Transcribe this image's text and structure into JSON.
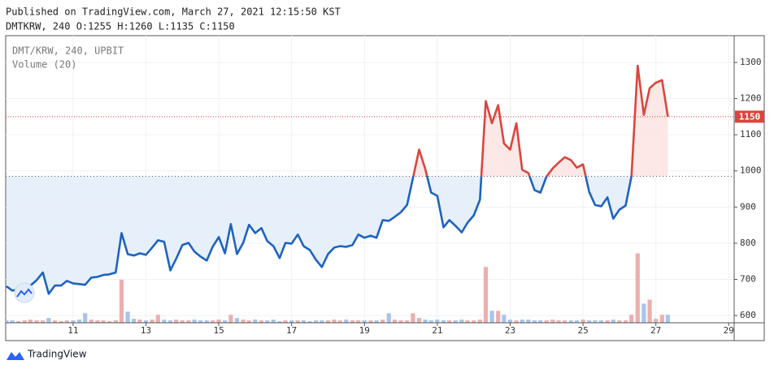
{
  "header": {
    "published": "Published on TradingView.com, March 27, 2021 12:15:50 KST",
    "ohlc": "DMTKRW, 240 O:1255 H:1260 L:1135 C:1150"
  },
  "footer": {
    "brand": "TradingView"
  },
  "chart_data": {
    "type": "baseline",
    "baseline": 985,
    "color_above": "#d9463e",
    "color_below": "#1e63c0",
    "fill_above": "#fbe5e4",
    "fill_below": "#e4eefa",
    "volume_up_color": "#eab0ae",
    "volume_down_color": "#a9c4ea",
    "xlim": [
      9.15,
      29.15
    ],
    "xticks": [
      11,
      13,
      15,
      17,
      19,
      21,
      23,
      25,
      27,
      29
    ],
    "ylim": [
      580,
      1374
    ],
    "yticks": [
      600,
      700,
      800,
      900,
      1000,
      1100,
      1200,
      1300
    ],
    "grid": true,
    "x": [
      9.17,
      9.33,
      9.5,
      9.67,
      9.83,
      10,
      10.17,
      10.33,
      10.5,
      10.67,
      10.83,
      11,
      11.17,
      11.33,
      11.5,
      11.67,
      11.83,
      12,
      12.17,
      12.33,
      12.5,
      12.67,
      12.83,
      13,
      13.17,
      13.33,
      13.5,
      13.67,
      13.83,
      14,
      14.17,
      14.33,
      14.5,
      14.67,
      14.83,
      15,
      15.17,
      15.33,
      15.5,
      15.67,
      15.83,
      16,
      16.17,
      16.33,
      16.5,
      16.67,
      16.83,
      17,
      17.17,
      17.33,
      17.5,
      17.67,
      17.83,
      18,
      18.17,
      18.33,
      18.5,
      18.67,
      18.83,
      19,
      19.17,
      19.33,
      19.5,
      19.67,
      19.83,
      20,
      20.17,
      20.33,
      20.5,
      20.67,
      20.83,
      21,
      21.17,
      21.33,
      21.5,
      21.67,
      21.83,
      22,
      22.17,
      22.33,
      22.5,
      22.67,
      22.83,
      23,
      23.17,
      23.33,
      23.5,
      23.67,
      23.83,
      24,
      24.17,
      24.33,
      24.5,
      24.67,
      24.83,
      25,
      25.17,
      25.33,
      25.5,
      25.67,
      25.83,
      26,
      26.17,
      26.33,
      26.5,
      26.67,
      26.83,
      27,
      27.17,
      27.33
    ],
    "series": [
      {
        "name": "DMT/KRW, 240, UPBIT",
        "values": [
          681,
          669,
          672,
          676,
          683,
          698,
          719,
          660,
          683,
          683,
          696,
          689,
          687,
          685,
          705,
          707,
          712,
          714,
          719,
          828,
          770,
          766,
          772,
          768,
          788,
          808,
          804,
          725,
          757,
          795,
          801,
          777,
          763,
          752,
          790,
          817,
          772,
          853,
          770,
          801,
          851,
          828,
          842,
          806,
          792,
          759,
          801,
          799,
          824,
          792,
          781,
          754,
          734,
          770,
          788,
          792,
          790,
          795,
          824,
          815,
          821,
          815,
          864,
          862,
          873,
          886,
          906,
          980,
          1059,
          1005,
          940,
          931,
          844,
          864,
          848,
          830,
          857,
          877,
          920,
          1193,
          1132,
          1182,
          1076,
          1059,
          1132,
          1003,
          994,
          947,
          940,
          985,
          1007,
          1023,
          1038,
          1030,
          1009,
          1018,
          942,
          906,
          902,
          927,
          868,
          893,
          904,
          985,
          1291,
          1155,
          1229,
          1244,
          1251,
          1150
        ]
      },
      {
        "name": "Volume (20)",
        "ylim": [
          0,
          360
        ],
        "values": [
          3,
          3,
          2,
          3,
          4,
          3,
          3,
          6,
          3,
          2,
          3,
          3,
          4,
          12,
          4,
          3,
          3,
          2,
          3,
          54,
          14,
          5,
          4,
          3,
          4,
          10,
          4,
          3,
          4,
          3,
          3,
          4,
          3,
          3,
          3,
          4,
          3,
          10,
          6,
          4,
          3,
          4,
          3,
          3,
          4,
          2,
          3,
          3,
          3,
          3,
          2,
          3,
          3,
          3,
          4,
          3,
          4,
          3,
          3,
          3,
          3,
          3,
          4,
          12,
          4,
          3,
          3,
          12,
          6,
          4,
          3,
          4,
          3,
          3,
          3,
          4,
          3,
          3,
          4,
          70,
          15,
          15,
          10,
          4,
          3,
          4,
          4,
          3,
          3,
          3,
          4,
          3,
          3,
          3,
          3,
          4,
          3,
          3,
          3,
          3,
          4,
          3,
          3,
          10,
          87,
          24,
          29,
          5,
          10,
          10
        ]
      }
    ]
  }
}
